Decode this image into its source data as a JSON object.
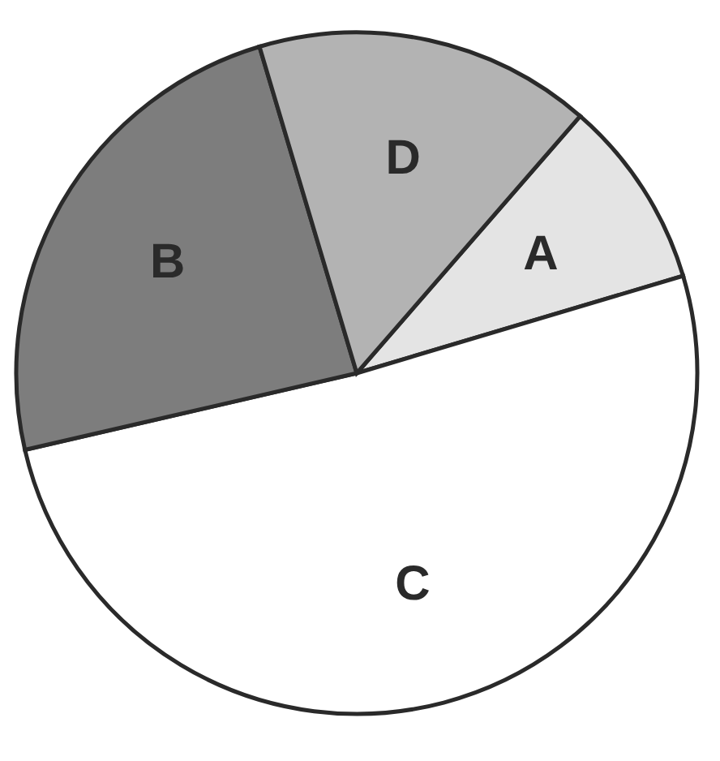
{
  "chart_data": {
    "type": "pie",
    "categories": [
      "A",
      "C",
      "B",
      "D"
    ],
    "values": [
      9,
      51,
      24,
      16
    ],
    "colors": [
      "#e4e4e4",
      "#ffffff",
      "#7d7d7d",
      "#b3b3b3"
    ],
    "legend": false
  }
}
